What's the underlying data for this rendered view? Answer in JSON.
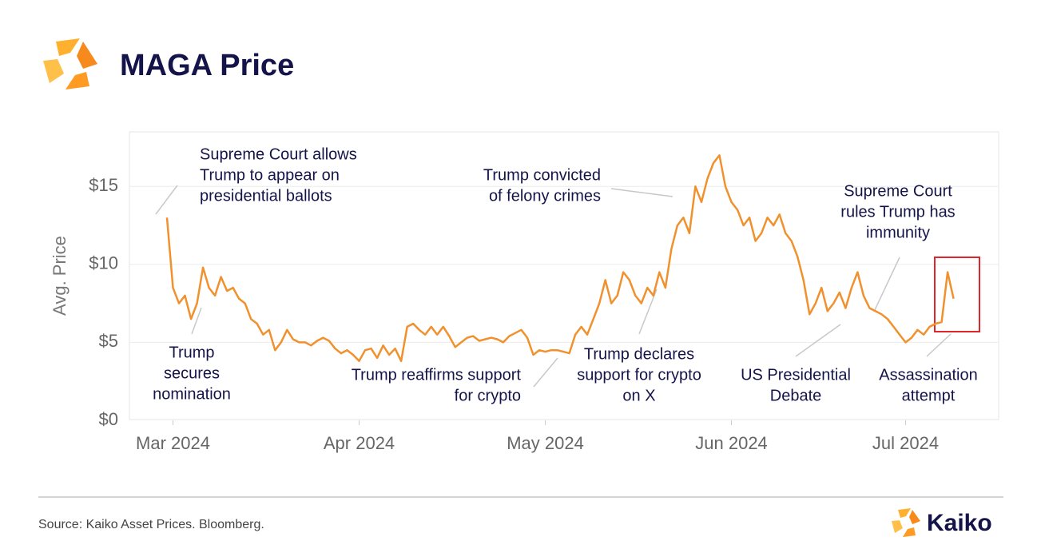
{
  "chart_data": {
    "type": "line",
    "title": "MAGA Price",
    "y_label": "Avg. Price",
    "source": "Source: Kaiko Asset Prices. Bloomberg.",
    "brand": "Kaiko",
    "color": "#f0912e",
    "grid": true,
    "ylim": [
      0,
      18.5
    ],
    "yticks": [
      {
        "value": 0,
        "label": "$0"
      },
      {
        "value": 5,
        "label": "$5"
      },
      {
        "value": 10,
        "label": "$10"
      },
      {
        "value": 15,
        "label": "$15"
      }
    ],
    "categories": [
      null,
      "Mar 2024",
      null,
      null,
      null,
      null,
      null,
      null,
      null,
      null,
      null,
      null,
      null,
      null,
      null,
      null,
      null,
      null,
      null,
      null,
      null,
      null,
      null,
      null,
      null,
      null,
      null,
      null,
      null,
      null,
      null,
      null,
      "Apr 2024",
      null,
      null,
      null,
      null,
      null,
      null,
      null,
      null,
      null,
      null,
      null,
      null,
      null,
      null,
      null,
      null,
      null,
      null,
      null,
      null,
      null,
      null,
      null,
      null,
      null,
      null,
      null,
      null,
      null,
      null,
      "May 2024",
      null,
      null,
      null,
      null,
      null,
      null,
      null,
      null,
      null,
      null,
      null,
      null,
      null,
      null,
      null,
      null,
      null,
      null,
      null,
      null,
      null,
      null,
      null,
      null,
      null,
      null,
      null,
      null,
      null,
      null,
      "Jun 2024",
      null,
      null,
      null,
      null,
      null,
      null,
      null,
      null,
      null,
      null,
      null,
      null,
      null,
      null,
      null,
      null,
      null,
      null,
      null,
      null,
      null,
      null,
      null,
      null,
      null,
      null,
      null,
      null,
      "Jul 2024",
      null,
      null,
      null,
      null,
      null,
      null,
      null,
      null
    ],
    "values": [
      13,
      8.5,
      7.5,
      8,
      6.5,
      7.5,
      9.8,
      8.5,
      8,
      9.2,
      8.3,
      8.5,
      7.8,
      7.5,
      6.5,
      6.2,
      5.5,
      5.8,
      4.5,
      5,
      5.8,
      5.2,
      5,
      5,
      4.8,
      5.1,
      5.3,
      5.1,
      4.6,
      4.3,
      4.5,
      4.2,
      3.8,
      4.5,
      4.6,
      4,
      4.8,
      4.2,
      4.6,
      3.8,
      6,
      6.2,
      5.8,
      5.5,
      6,
      5.5,
      6,
      5.4,
      4.7,
      5,
      5.3,
      5.4,
      5.1,
      5.2,
      5.3,
      5.2,
      5,
      5.4,
      5.6,
      5.8,
      5.3,
      4.2,
      4.5,
      4.4,
      4.5,
      4.5,
      4.4,
      4.3,
      5.5,
      6,
      5.5,
      6.5,
      7.5,
      9,
      7.5,
      8,
      9.5,
      9,
      8,
      7.5,
      8.5,
      8,
      9.5,
      8.5,
      11,
      12.5,
      13,
      12,
      15,
      14,
      15.5,
      16.5,
      17,
      15,
      14,
      13.5,
      12.5,
      13,
      11.5,
      12,
      13,
      12.5,
      13.2,
      12,
      11.5,
      10.5,
      9,
      6.8,
      7.5,
      8.5,
      7,
      7.5,
      8.2,
      7.2,
      8.5,
      9.5,
      8,
      7.2,
      7,
      6.8,
      6.5,
      6,
      5.5,
      5,
      5.3,
      5.8,
      5.5,
      6,
      6.2,
      6.3,
      9.5,
      7.8
    ],
    "annotations": [
      [
        "Supreme Court allows",
        "Trump to appear on",
        "presidential ballots"
      ],
      [
        "Trump",
        "secures",
        "nomination"
      ],
      [
        "Trump reaffirms support",
        "for crypto"
      ],
      [
        "Trump convicted",
        "of felony crimes"
      ],
      [
        "Trump declares",
        "support for crypto",
        "on X"
      ],
      [
        "US Presidential",
        "Debate"
      ],
      [
        "Supreme Court",
        "rules Trump has",
        "immunity"
      ],
      [
        "Assassination",
        "attempt"
      ]
    ]
  }
}
